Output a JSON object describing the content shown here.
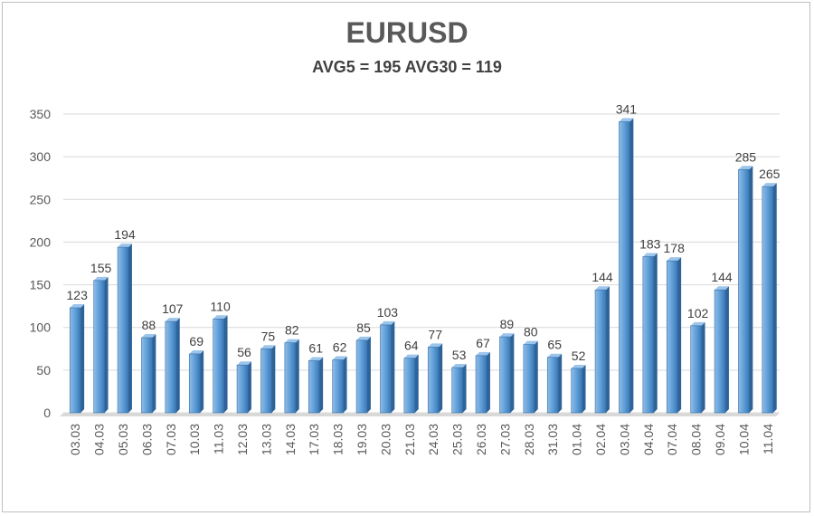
{
  "chart_data": {
    "type": "bar",
    "title": "EURUSD",
    "subtitle": "AVG5 = 195 AVG30 = 119",
    "categories": [
      "03.03",
      "04.03",
      "05.03",
      "06.03",
      "07.03",
      "10.03",
      "11.03",
      "12.03",
      "13.03",
      "14.03",
      "17.03",
      "18.03",
      "19.03",
      "20.03",
      "21.03",
      "24.03",
      "25.03",
      "26.03",
      "27.03",
      "28.03",
      "31.03",
      "01.04",
      "02.04",
      "03.04",
      "04.04",
      "07.04",
      "08.04",
      "09.04",
      "10.04",
      "11.04"
    ],
    "values": [
      123,
      155,
      194,
      88,
      107,
      69,
      110,
      56,
      75,
      82,
      61,
      62,
      85,
      103,
      64,
      77,
      53,
      67,
      89,
      80,
      65,
      52,
      144,
      341,
      183,
      178,
      102,
      144,
      285,
      265
    ],
    "ylim": [
      0,
      350
    ],
    "yticks": [
      0,
      50,
      100,
      150,
      200,
      250,
      300,
      350
    ],
    "xlabel": "",
    "ylabel": "",
    "grid": true,
    "legend": "none",
    "bar_color": "#5b9bd5"
  }
}
